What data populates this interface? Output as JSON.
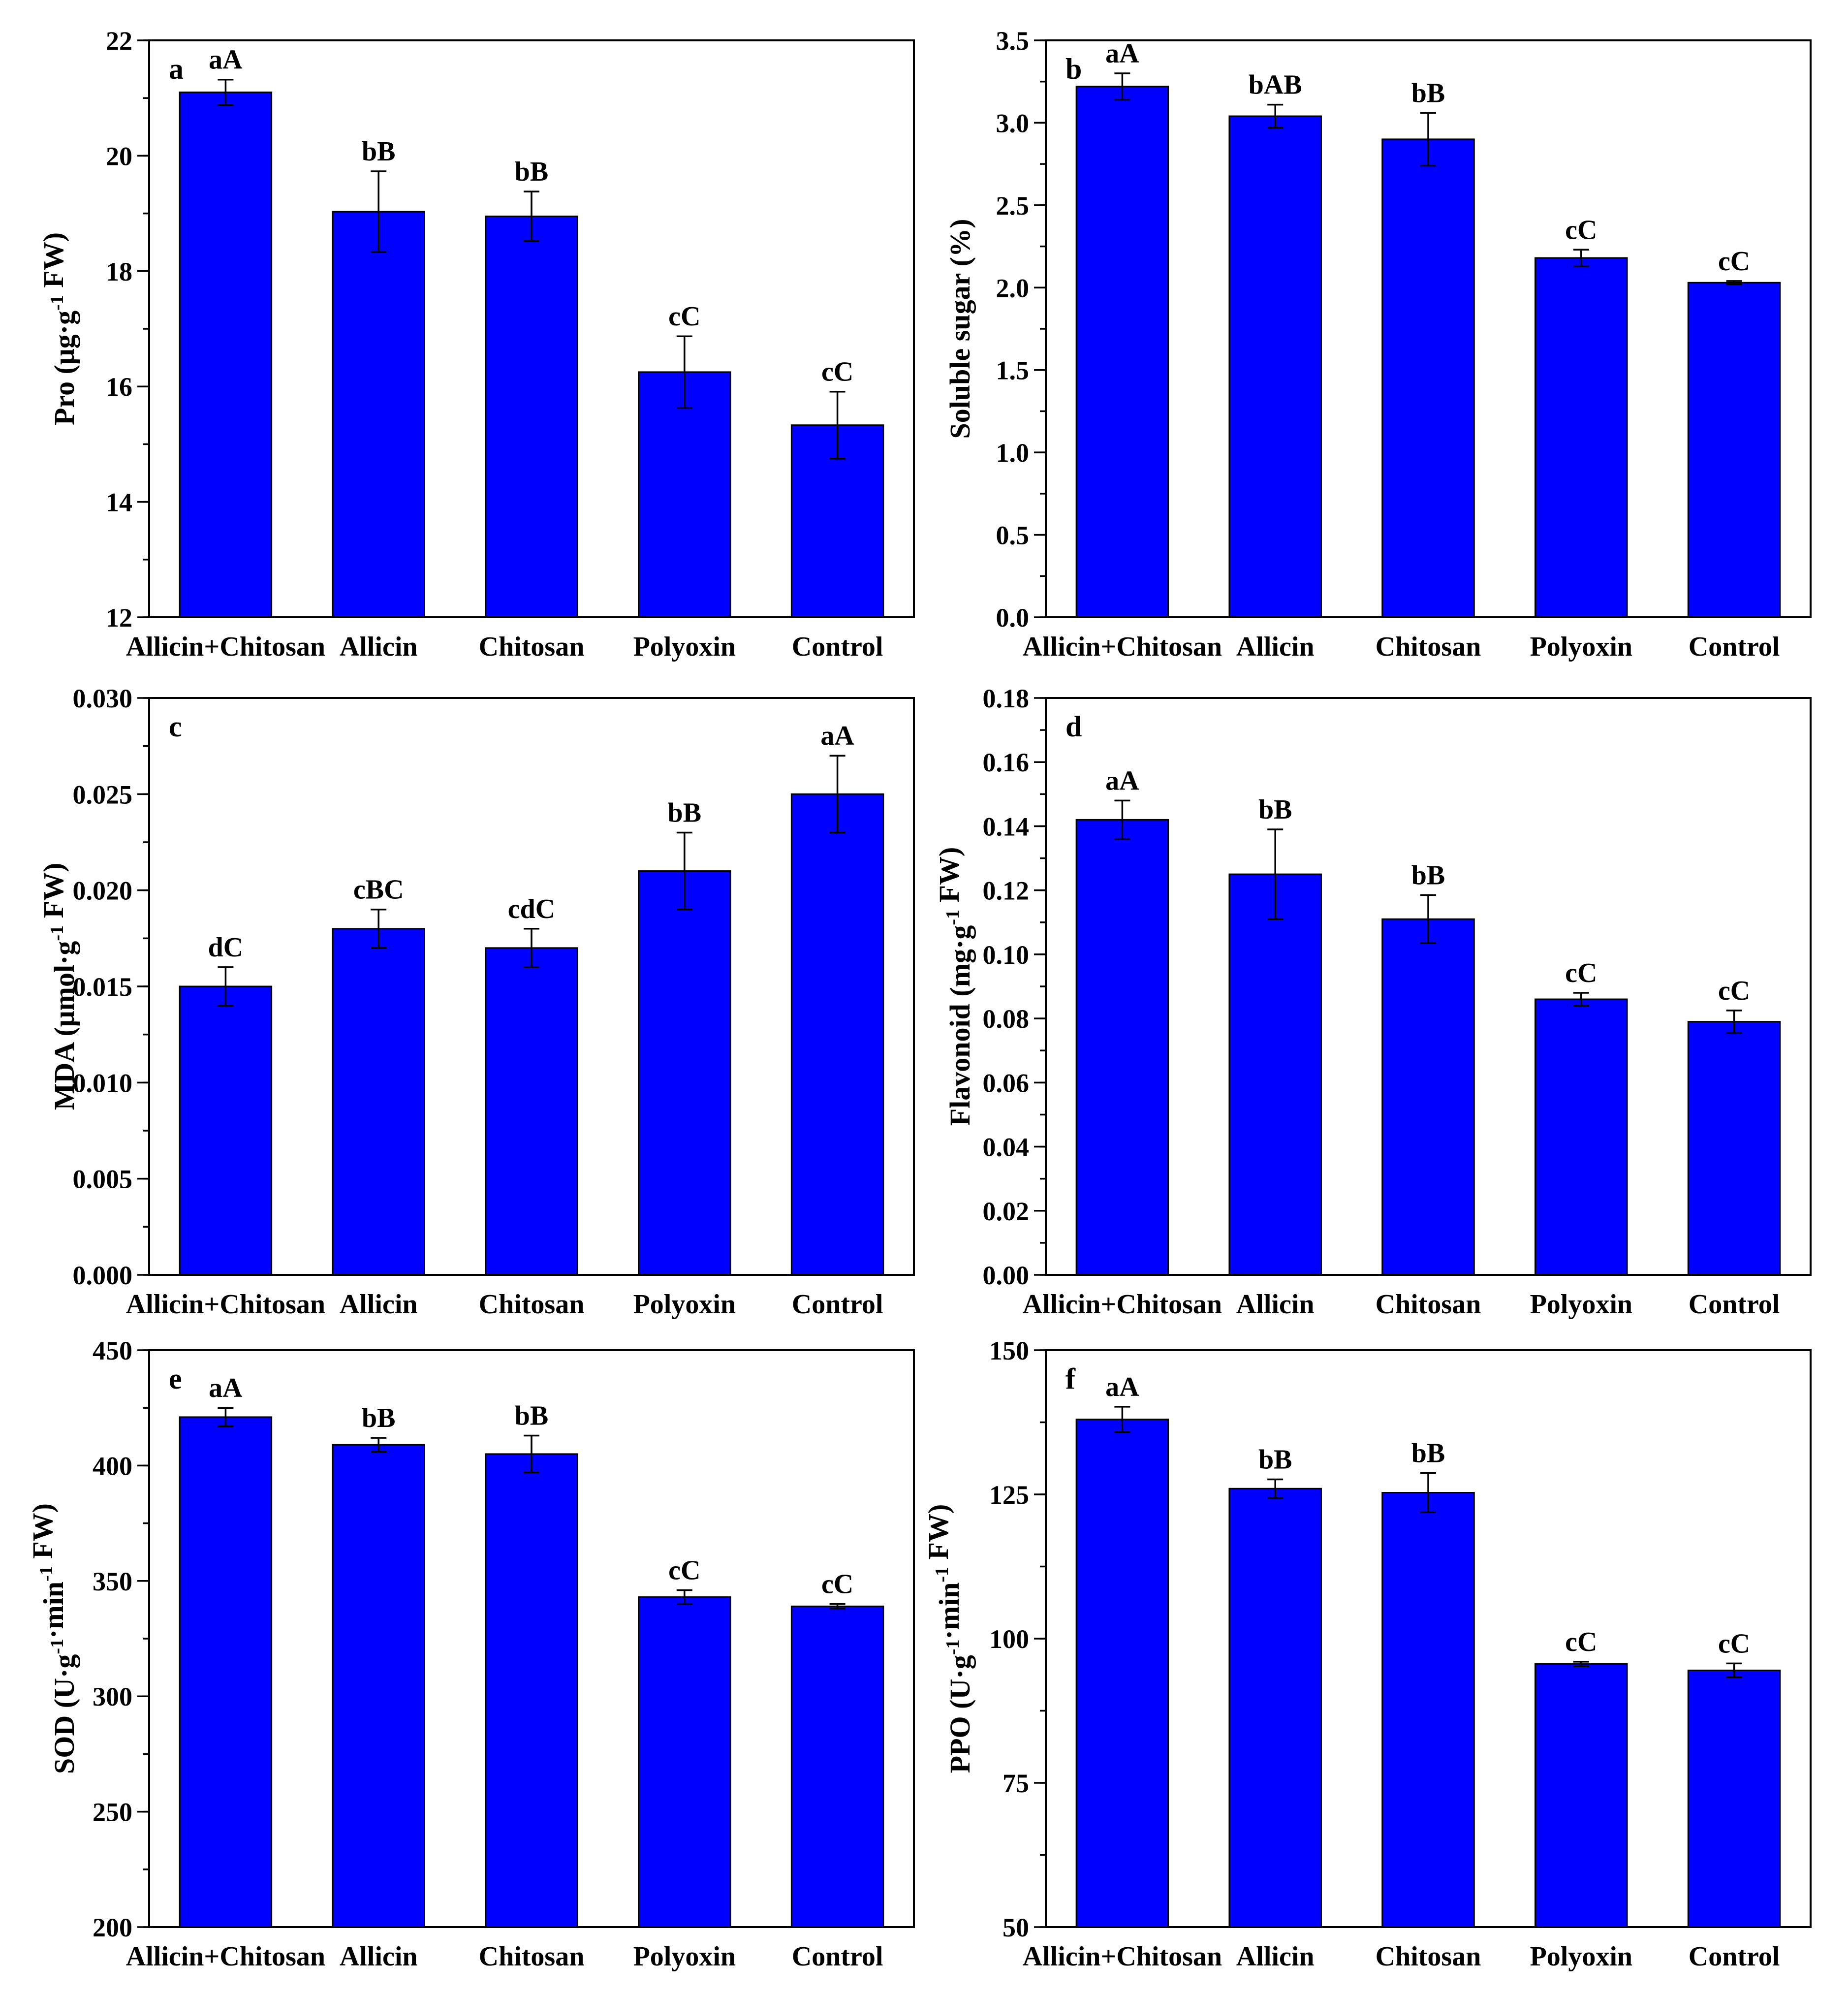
{
  "chart_data": [
    {
      "panel": "a",
      "type": "bar",
      "categories": [
        "Allicin+Chitosan",
        "Allicin",
        "Chitosan",
        "Polyoxin",
        "Control"
      ],
      "values": [
        21.1,
        19.03,
        18.95,
        16.25,
        15.33
      ],
      "errors": [
        0.22,
        0.7,
        0.43,
        0.62,
        0.58
      ],
      "letters": [
        "aA",
        "bB",
        "bB",
        "cC",
        "cC"
      ],
      "ylabel": "Pro (μg·g<sup>-1</sup> FW)",
      "ylabel_plain": "Pro (μg·g-1 FW)",
      "ylim": [
        12,
        22
      ],
      "major_ticks": [
        12,
        14,
        16,
        18,
        20,
        22
      ],
      "tick_labels": [
        "12",
        "14",
        "16",
        "18",
        "20",
        "22"
      ],
      "minor_step": 1,
      "bar_color": "#0000ff"
    },
    {
      "panel": "b",
      "type": "bar",
      "categories": [
        "Allicin+Chitosan",
        "Allicin",
        "Chitosan",
        "Polyoxin",
        "Control"
      ],
      "values": [
        3.22,
        3.04,
        2.9,
        2.18,
        2.03
      ],
      "errors": [
        0.08,
        0.07,
        0.16,
        0.05,
        0.01
      ],
      "letters": [
        "aA",
        "bAB",
        "bB",
        "cC",
        "cC"
      ],
      "ylabel": "Soluble sugar (%)",
      "ylabel_plain": "Soluble sugar (%)",
      "ylim": [
        0,
        3.5
      ],
      "major_ticks": [
        0,
        0.5,
        1.0,
        1.5,
        2.0,
        2.5,
        3.0,
        3.5
      ],
      "tick_labels": [
        "0.0",
        "0.5",
        "1.0",
        "1.5",
        "2.0",
        "2.5",
        "3.0",
        "3.5"
      ],
      "minor_step": 0.25,
      "bar_color": "#0000ff"
    },
    {
      "panel": "c",
      "type": "bar",
      "categories": [
        "Allicin+Chitosan",
        "Allicin",
        "Chitosan",
        "Polyoxin",
        "Control"
      ],
      "values": [
        0.015,
        0.018,
        0.017,
        0.021,
        0.025
      ],
      "errors": [
        0.001,
        0.001,
        0.001,
        0.002,
        0.002
      ],
      "letters": [
        "dC",
        "cBC",
        "cdC",
        "bB",
        "aA"
      ],
      "ylabel": "MDA (μmol·g<sup>-1</sup> FW)",
      "ylabel_plain": "MDA (μmol·g-1 FW)",
      "ylim": [
        0,
        0.03
      ],
      "major_ticks": [
        0,
        0.005,
        0.01,
        0.015,
        0.02,
        0.025,
        0.03
      ],
      "tick_labels": [
        "0.000",
        "0.005",
        "0.010",
        "0.015",
        "0.020",
        "0.025",
        "0.030"
      ],
      "minor_step": 0.0025,
      "bar_color": "#0000ff"
    },
    {
      "panel": "d",
      "type": "bar",
      "categories": [
        "Allicin+Chitosan",
        "Allicin",
        "Chitosan",
        "Polyoxin",
        "Control"
      ],
      "values": [
        0.142,
        0.125,
        0.111,
        0.086,
        0.079
      ],
      "errors": [
        0.006,
        0.014,
        0.0075,
        0.002,
        0.0035
      ],
      "letters": [
        "aA",
        "bB",
        "bB",
        "cC",
        "cC"
      ],
      "ylabel": "Flavonoid (mg·g<sup>-1</sup> FW)",
      "ylabel_plain": "Flavonoid (mg·g-1 FW)",
      "ylim": [
        0,
        0.18
      ],
      "major_ticks": [
        0,
        0.02,
        0.04,
        0.06,
        0.08,
        0.1,
        0.12,
        0.14,
        0.16,
        0.18
      ],
      "tick_labels": [
        "0.00",
        "0.02",
        "0.04",
        "0.06",
        "0.08",
        "0.10",
        "0.12",
        "0.14",
        "0.16",
        "0.18"
      ],
      "minor_step": 0.01,
      "bar_color": "#0000ff"
    },
    {
      "panel": "e",
      "type": "bar",
      "categories": [
        "Allicin+Chitosan",
        "Allicin",
        "Chitosan",
        "Polyoxin",
        "Control"
      ],
      "values": [
        421,
        409,
        405,
        343,
        339
      ],
      "errors": [
        4,
        3,
        8,
        3,
        1
      ],
      "letters": [
        "aA",
        "bB",
        "bB",
        "cC",
        "cC"
      ],
      "ylabel": "SOD (U·g<sup>-1</sup>·min<sup>-1</sup> FW)",
      "ylabel_plain": "SOD (U·g-1·min-1 FW)",
      "ylim": [
        200,
        450
      ],
      "major_ticks": [
        200,
        250,
        300,
        350,
        400,
        450
      ],
      "tick_labels": [
        "200",
        "250",
        "300",
        "350",
        "400",
        "450"
      ],
      "minor_step": 25,
      "bar_color": "#0000ff"
    },
    {
      "panel": "f",
      "type": "bar",
      "categories": [
        "Allicin+Chitosan",
        "Allicin",
        "Chitosan",
        "Polyoxin",
        "Control"
      ],
      "values": [
        138,
        126,
        125.3,
        95.6,
        94.5
      ],
      "errors": [
        2.2,
        1.6,
        3.4,
        0.4,
        1.2
      ],
      "letters": [
        "aA",
        "bB",
        "bB",
        "cC",
        "cC"
      ],
      "ylabel": "PPO (U·g<sup>-1</sup>·min<sup>-1</sup> FW)",
      "ylabel_plain": "PPO (U·g-1·min-1 FW)",
      "ylim": [
        50,
        150
      ],
      "major_ticks": [
        50,
        75,
        100,
        125,
        150
      ],
      "tick_labels": [
        "50",
        "75",
        "100",
        "125",
        "150"
      ],
      "minor_step": 12.5,
      "bar_color": "#0000ff"
    }
  ]
}
